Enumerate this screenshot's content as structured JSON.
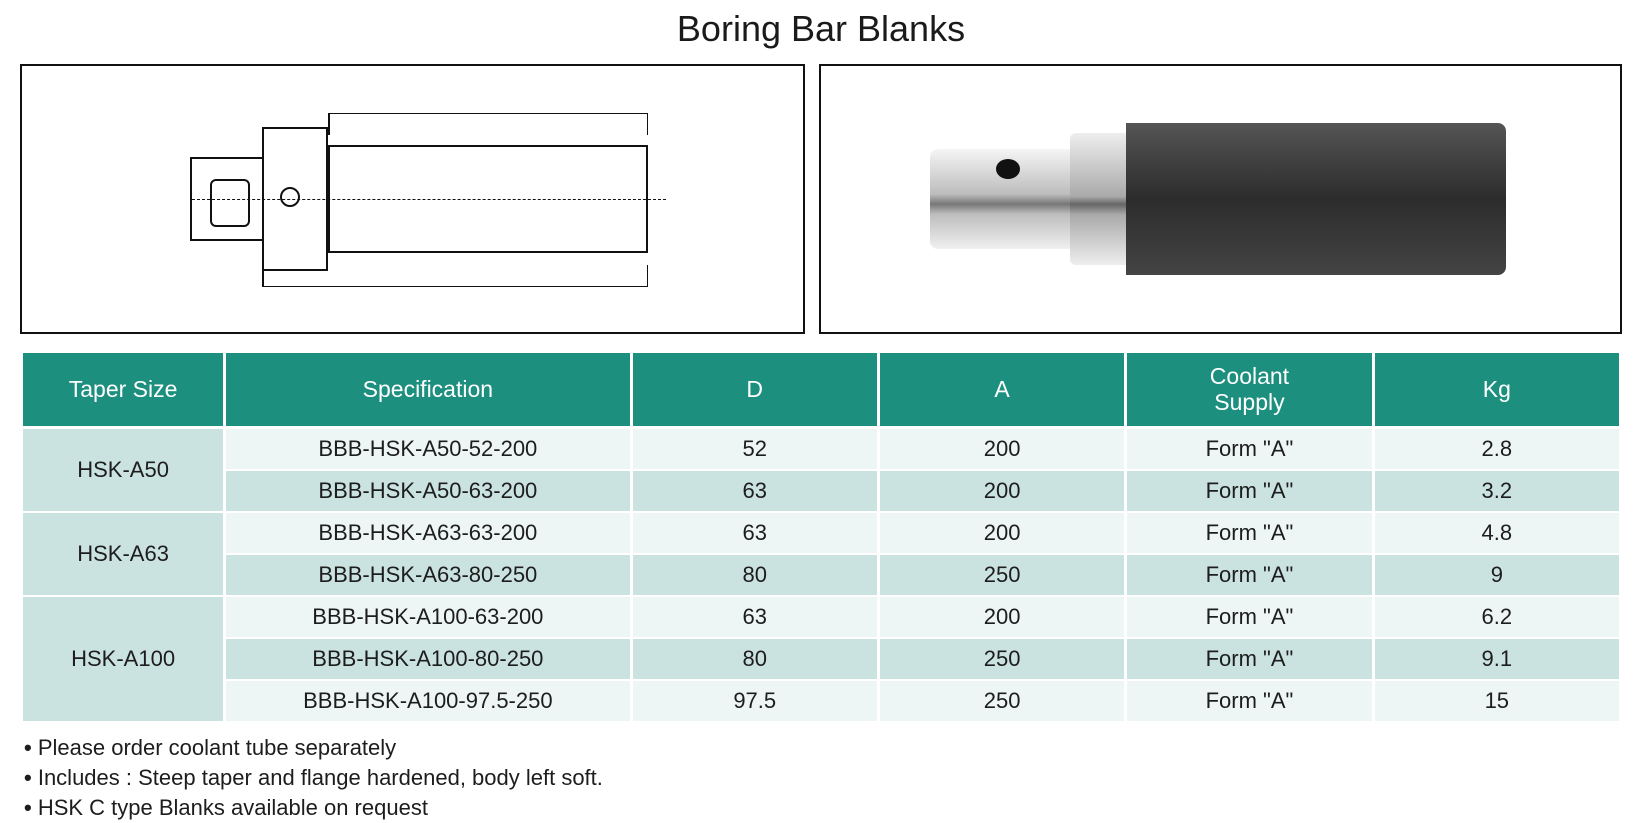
{
  "title": "Boring Bar Blanks",
  "table": {
    "header_bg": "#1d8f7f",
    "row_colors": {
      "light": "#edf5f5",
      "dark": "#cbe3e0"
    },
    "col_widths_pct": [
      11.5,
      23,
      14,
      14,
      14,
      14
    ],
    "columns": [
      "Taper Size",
      "Specification",
      "D",
      "A",
      "Coolant Supply",
      "Kg"
    ],
    "groups": [
      {
        "taper": "HSK-A50",
        "rows": [
          {
            "spec": "BBB-HSK-A50-52-200",
            "D": "52",
            "A": "200",
            "coolant": "Form \"A\"",
            "kg": "2.8",
            "shade": "light"
          },
          {
            "spec": "BBB-HSK-A50-63-200",
            "D": "63",
            "A": "200",
            "coolant": "Form \"A\"",
            "kg": "3.2",
            "shade": "dark"
          }
        ]
      },
      {
        "taper": "HSK-A63",
        "rows": [
          {
            "spec": "BBB-HSK-A63-63-200",
            "D": "63",
            "A": "200",
            "coolant": "Form \"A\"",
            "kg": "4.8",
            "shade": "light"
          },
          {
            "spec": "BBB-HSK-A63-80-250",
            "D": "80",
            "A": "250",
            "coolant": "Form \"A\"",
            "kg": "9",
            "shade": "dark"
          }
        ]
      },
      {
        "taper": "HSK-A100",
        "rows": [
          {
            "spec": "BBB-HSK-A100-63-200",
            "D": "63",
            "A": "200",
            "coolant": "Form \"A\"",
            "kg": "6.2",
            "shade": "light"
          },
          {
            "spec": "BBB-HSK-A100-80-250",
            "D": "80",
            "A": "250",
            "coolant": "Form \"A\"",
            "kg": "9.1",
            "shade": "dark"
          },
          {
            "spec": "BBB-HSK-A100-97.5-250",
            "D": "97.5",
            "A": "250",
            "coolant": "Form \"A\"",
            "kg": "15",
            "shade": "light"
          }
        ]
      }
    ]
  },
  "notes": [
    "Please order coolant tube separately",
    "Includes : Steep taper and flange hardened, body left soft.",
    "HSK C type Blanks available on request"
  ]
}
